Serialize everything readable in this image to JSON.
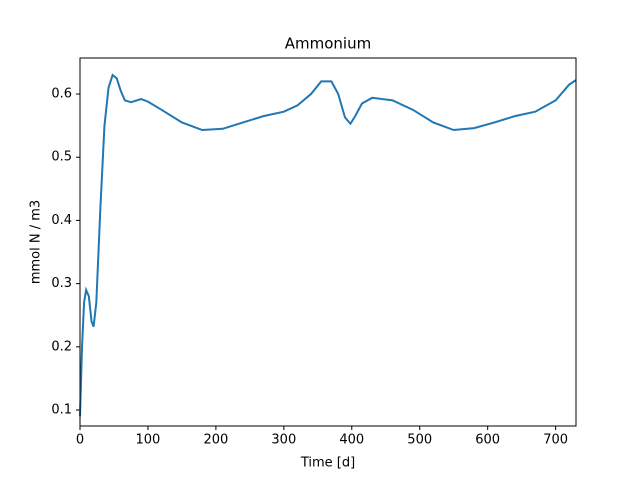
{
  "chart_data": {
    "type": "line",
    "title": "Ammonium",
    "x_label": "Time [d]",
    "y_label": "mmol N / m3",
    "x": [
      0,
      3,
      6,
      9,
      13,
      17,
      20,
      24,
      30,
      36,
      42,
      48,
      54,
      60,
      66,
      75,
      90,
      100,
      120,
      150,
      180,
      210,
      240,
      270,
      300,
      320,
      340,
      355,
      370,
      380,
      390,
      398,
      405,
      415,
      430,
      460,
      490,
      520,
      550,
      580,
      610,
      640,
      670,
      700,
      720,
      730
    ],
    "series": [
      {
        "name": "Ammonium",
        "color": "#1f77b4",
        "values": [
          0.09,
          0.2,
          0.27,
          0.29,
          0.28,
          0.24,
          0.232,
          0.27,
          0.42,
          0.55,
          0.61,
          0.63,
          0.625,
          0.605,
          0.59,
          0.587,
          0.592,
          0.588,
          0.575,
          0.555,
          0.543,
          0.545,
          0.555,
          0.565,
          0.572,
          0.582,
          0.6,
          0.62,
          0.62,
          0.6,
          0.563,
          0.553,
          0.565,
          0.585,
          0.594,
          0.59,
          0.575,
          0.555,
          0.543,
          0.546,
          0.555,
          0.565,
          0.572,
          0.59,
          0.615,
          0.622
        ]
      }
    ],
    "xlim": [
      0,
      730
    ],
    "ylim": [
      0.0747,
      0.657
    ],
    "xticks": [
      0,
      100,
      200,
      300,
      400,
      500,
      600,
      700
    ],
    "yticks": [
      0.1,
      0.2,
      0.3,
      0.4,
      0.5,
      0.6
    ]
  }
}
